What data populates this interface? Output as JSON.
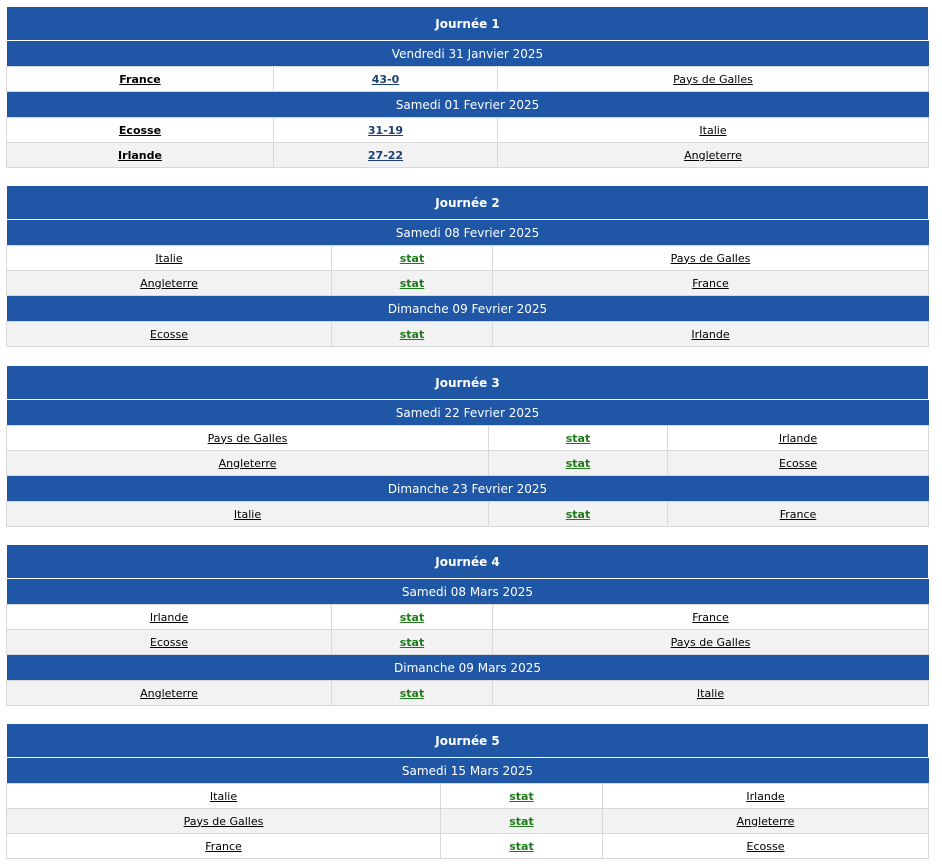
{
  "rounds": [
    {
      "title": "Journée 1",
      "days": [
        {
          "date": "Vendredi 31 Janvier 2025",
          "matches": [
            {
              "home": "France",
              "result": "43-0",
              "away": "Pays de Galles"
            }
          ]
        },
        {
          "date": "Samedi 01 Fevrier 2025",
          "matches": [
            {
              "home": "Ecosse",
              "result": "31-19",
              "away": "Italie"
            },
            {
              "home": "Irlande",
              "result": "27-22",
              "away": "Angleterre"
            }
          ]
        }
      ]
    },
    {
      "title": "Journée 2",
      "days": [
        {
          "date": "Samedi 08 Fevrier 2025",
          "matches": [
            {
              "home": "Italie",
              "result": "stat",
              "away": "Pays de Galles"
            },
            {
              "home": "Angleterre",
              "result": "stat",
              "away": "France"
            }
          ]
        },
        {
          "date": "Dimanche 09 Fevrier 2025",
          "matches": [
            {
              "home": "Ecosse",
              "result": "stat",
              "away": "Irlande"
            }
          ]
        }
      ]
    },
    {
      "title": "Journée 3",
      "days": [
        {
          "date": "Samedi 22 Fevrier 2025",
          "matches": [
            {
              "home": "Pays de Galles",
              "result": "stat",
              "away": "Irlande"
            },
            {
              "home": "Angleterre",
              "result": "stat",
              "away": "Ecosse"
            }
          ]
        },
        {
          "date": "Dimanche 23 Fevrier 2025",
          "matches": [
            {
              "home": "Italie",
              "result": "stat",
              "away": "France"
            }
          ]
        }
      ]
    },
    {
      "title": "Journée 4",
      "days": [
        {
          "date": "Samedi 08 Mars 2025",
          "matches": [
            {
              "home": "Irlande",
              "result": "stat",
              "away": "France"
            },
            {
              "home": "Ecosse",
              "result": "stat",
              "away": "Pays de Galles"
            }
          ]
        },
        {
          "date": "Dimanche 09 Mars 2025",
          "matches": [
            {
              "home": "Angleterre",
              "result": "stat",
              "away": "Italie"
            }
          ]
        }
      ]
    },
    {
      "title": "Journée 5",
      "days": [
        {
          "date": "Samedi 15 Mars 2025",
          "matches": [
            {
              "home": "Italie",
              "result": "stat",
              "away": "Irlande"
            },
            {
              "home": "Pays de Galles",
              "result": "stat",
              "away": "Angleterre"
            },
            {
              "home": "France",
              "result": "stat",
              "away": "Ecosse"
            }
          ]
        }
      ]
    }
  ],
  "colors": {
    "header_blue": "#1f56a5",
    "score_link": "#1a3f73",
    "stat_link": "#1e7a18",
    "alt_row": "#f2f2f2"
  }
}
